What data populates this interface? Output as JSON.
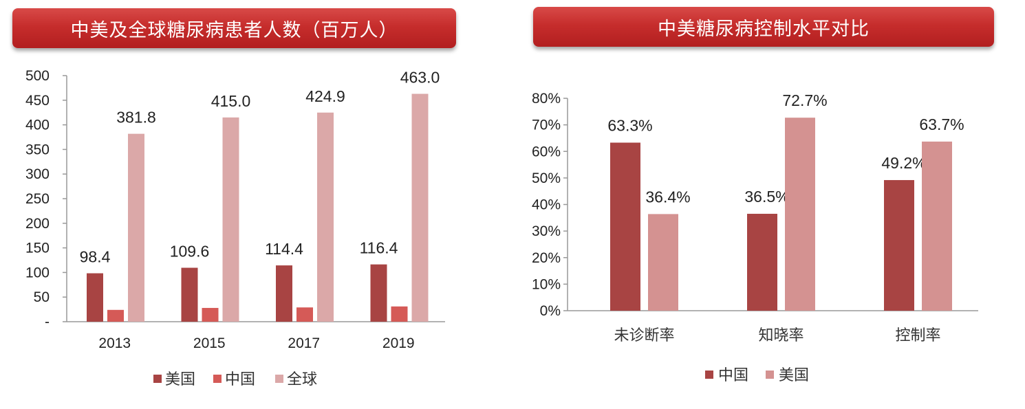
{
  "chart_data": [
    {
      "type": "bar",
      "title": "中美及全球糖尿病患者人数（百万人）",
      "categories": [
        "2013",
        "2015",
        "2017",
        "2019"
      ],
      "series": [
        {
          "name": "美国",
          "values": [
            98.4,
            109.6,
            114.4,
            116.4
          ],
          "color": "#a84443",
          "labeled": true
        },
        {
          "name": "中国",
          "values": [
            24,
            28,
            29,
            31
          ],
          "color": "#d55a57",
          "labeled": false
        },
        {
          "name": "全球",
          "values": [
            381.8,
            415.0,
            424.9,
            463.0
          ],
          "color": "#dba8a8",
          "labeled": true
        }
      ],
      "value_labels": {
        "美国": [
          "98.4",
          "109.6",
          "114.4",
          "116.4"
        ],
        "全球": [
          "381.8",
          "415.0",
          "424.9",
          "463.0"
        ]
      },
      "ylim": [
        0,
        500
      ],
      "yticks": [
        "-",
        "50",
        "100",
        "150",
        "200",
        "250",
        "300",
        "350",
        "400",
        "450",
        "500"
      ],
      "legend_position": "bottom",
      "grid": false
    },
    {
      "type": "bar",
      "title": "中美糖尿病控制水平对比",
      "categories": [
        "未诊断率",
        "知晓率",
        "控制率"
      ],
      "series": [
        {
          "name": "中国",
          "values": [
            63.3,
            36.5,
            49.2
          ],
          "color": "#a84443"
        },
        {
          "name": "美国",
          "values": [
            36.4,
            72.7,
            63.7
          ],
          "color": "#d49291"
        }
      ],
      "value_labels": {
        "中国": [
          "63.3%",
          "36.5%",
          "49.2%"
        ],
        "美国": [
          "36.4%",
          "72.7%",
          "63.7%"
        ]
      },
      "ylim": [
        0,
        80
      ],
      "yticks": [
        "0%",
        "10%",
        "20%",
        "30%",
        "40%",
        "50%",
        "60%",
        "70%",
        "80%"
      ],
      "legend_position": "bottom",
      "grid": false
    }
  ]
}
